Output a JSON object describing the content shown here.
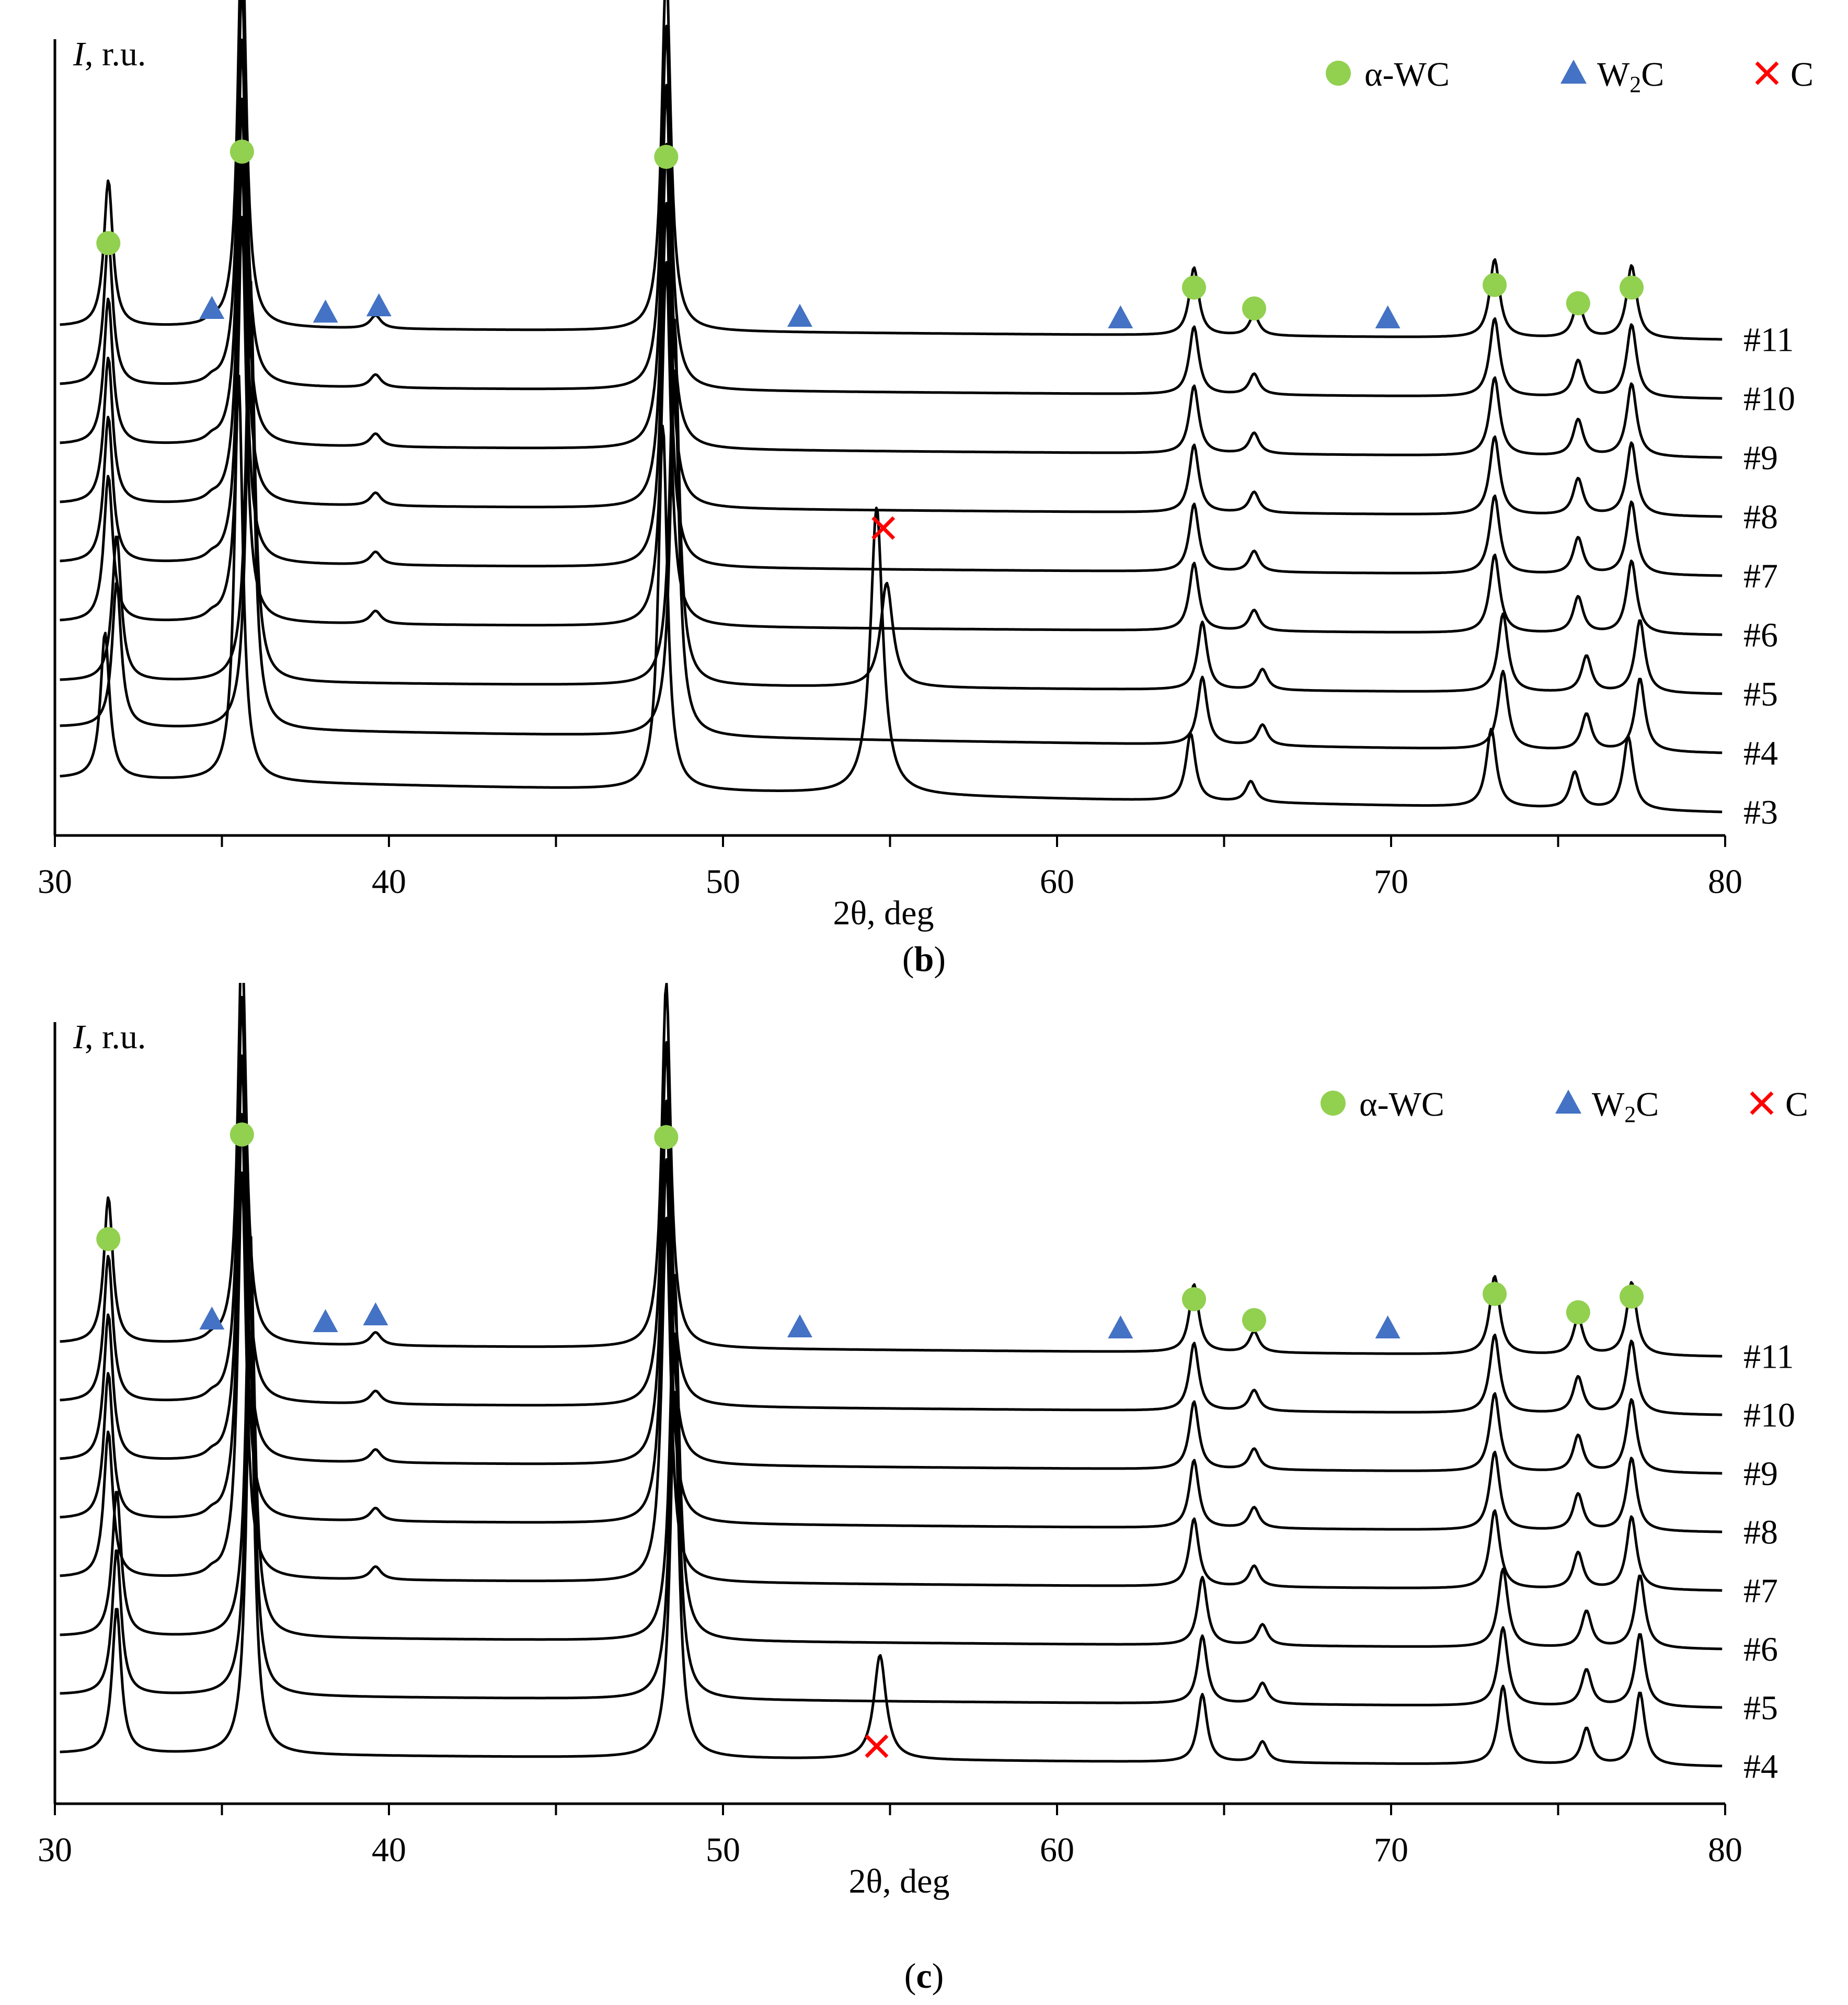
{
  "legend": {
    "wc": "α-WC",
    "w2c_prefix": "W",
    "w2c_sub": "2",
    "w2c_suffix": "C",
    "c": "C"
  },
  "colors": {
    "wc": "#92d050",
    "w2c": "#4472c4",
    "c": "#ff0000",
    "line": "#000000"
  },
  "chart_data": [
    {
      "panel": "b",
      "type": "line",
      "caption_open": "(",
      "caption_letter": "b",
      "caption_close": ")",
      "ylabel_italic": "I",
      "ylabel_rest": ", r.u.",
      "xlabel": "2θ, deg",
      "xlim": [
        30,
        80
      ],
      "x_ticks": [
        30,
        40,
        50,
        60,
        70,
        80
      ],
      "series_labels": [
        "#11",
        "#10",
        "#9",
        "#8",
        "#7",
        "#6",
        "#5",
        "#4",
        "#3"
      ],
      "peak_heights_shown_for": "#11",
      "markers": {
        "wc": [
          31.6,
          35.6,
          48.3,
          64.1,
          65.9,
          73.1,
          75.6,
          77.2
        ],
        "w2c": [
          34.7,
          38.1,
          39.7,
          52.3,
          61.9,
          69.9
        ],
        "c": [
          54.8
        ]
      }
    },
    {
      "panel": "c",
      "type": "line",
      "caption_open": "(",
      "caption_letter": "c",
      "caption_close": ")",
      "ylabel_italic": "I",
      "ylabel_rest": ", r.u.",
      "xlabel": "2θ, deg",
      "xlim": [
        30,
        80
      ],
      "x_ticks": [
        30,
        40,
        50,
        60,
        70,
        80
      ],
      "series_labels": [
        "#11",
        "#10",
        "#9",
        "#8",
        "#7",
        "#6",
        "#5",
        "#4"
      ],
      "markers": {
        "wc": [
          31.6,
          35.6,
          48.3,
          64.1,
          65.9,
          73.1,
          75.6,
          77.2
        ],
        "w2c": [
          34.7,
          38.1,
          39.6,
          52.3,
          61.9,
          69.9
        ],
        "c": [
          54.6
        ]
      }
    }
  ]
}
